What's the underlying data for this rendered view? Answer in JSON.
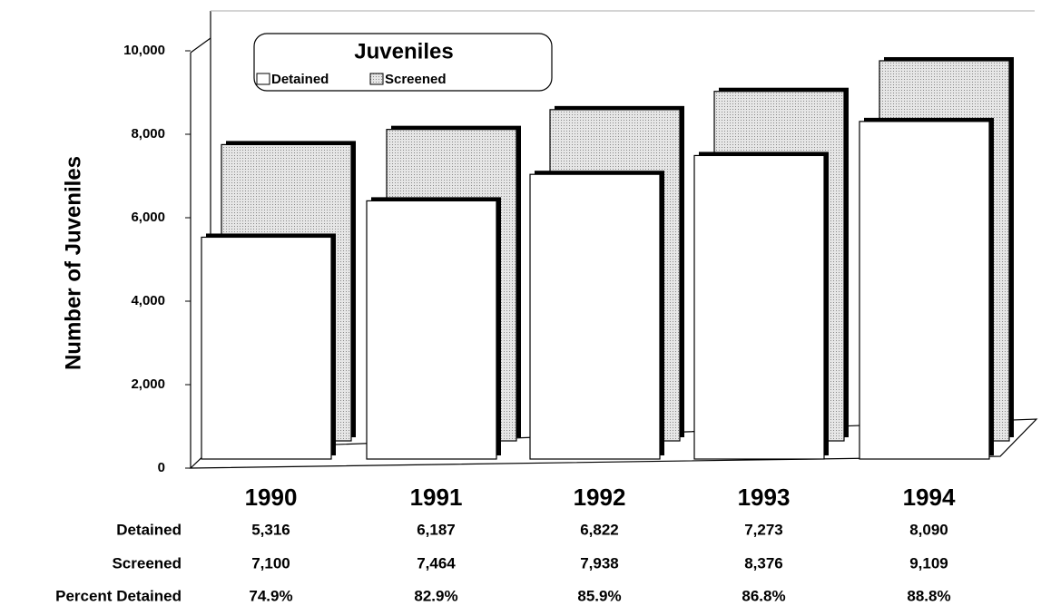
{
  "chart_data": {
    "type": "bar",
    "categories": [
      "1990",
      "1991",
      "1992",
      "1993",
      "1994"
    ],
    "series": [
      {
        "name": "Detained",
        "color": "#ffffff",
        "values": [
          5316,
          6187,
          6822,
          7273,
          8090
        ],
        "value_labels": [
          "5,316",
          "6,187",
          "6,822",
          "7,273",
          "8,090"
        ]
      },
      {
        "name": "Screened",
        "color": "#d8d8d8",
        "values": [
          7100,
          7464,
          7938,
          8376,
          9109
        ],
        "value_labels": [
          "7,100",
          "7,464",
          "7,938",
          "8,376",
          "9,109"
        ]
      }
    ],
    "percent_detained": {
      "name": "Percent Detained",
      "values": [
        74.9,
        82.9,
        85.9,
        86.8,
        88.8
      ],
      "value_labels": [
        "74.9%",
        "82.9%",
        "85.9%",
        "86.8%",
        "88.8%"
      ]
    },
    "legend_title": "Juveniles",
    "ylabel": "Number of Juveniles",
    "ylim": [
      0,
      10000
    ],
    "yticks": [
      0,
      {
        "value": 2000,
        "label": "2,000"
      },
      {
        "value": 4000,
        "label": "4,000"
      },
      {
        "value": 6000,
        "label": "6,000"
      },
      {
        "value": 8000,
        "label": "8,000"
      },
      {
        "value": 10000,
        "label": "10,000"
      }
    ]
  }
}
